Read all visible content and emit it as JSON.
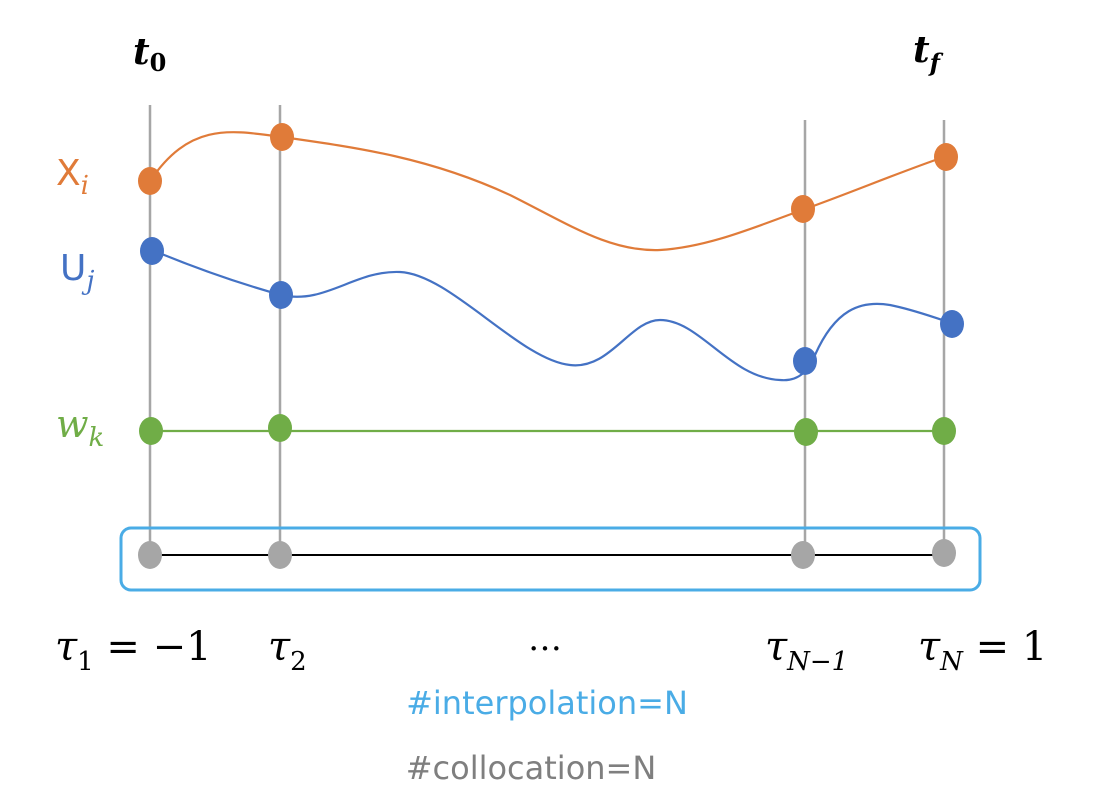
{
  "time_labels": {
    "start": {
      "base": "t",
      "sub": "0"
    },
    "end": {
      "base": "t",
      "sub": "f"
    }
  },
  "series": {
    "state": {
      "base": "X",
      "sub": "i",
      "color": "#E07B39"
    },
    "control": {
      "base": "U",
      "sub": "j",
      "color": "#4472C4"
    },
    "weight": {
      "base": "w",
      "sub": "k",
      "color": "#70AD47"
    }
  },
  "nodes": {
    "color": "#A6A6A6",
    "box_color": "#4AACE6"
  },
  "tau_labels": {
    "first": {
      "base": "τ",
      "sub": "1",
      "suffix": " = −1"
    },
    "second": {
      "base": "τ",
      "sub": "2",
      "suffix": ""
    },
    "ellipsis": "…",
    "second_last": {
      "base": "τ",
      "sub": "N−1",
      "suffix": ""
    },
    "last": {
      "base": "τ",
      "sub": "N",
      "suffix": " = 1"
    }
  },
  "captions": {
    "interpolation": "#interpolation=N",
    "interpolation_color": "#4AACE6",
    "collocation": "#collocation=N",
    "collocation_color": "#7F7F7F"
  }
}
